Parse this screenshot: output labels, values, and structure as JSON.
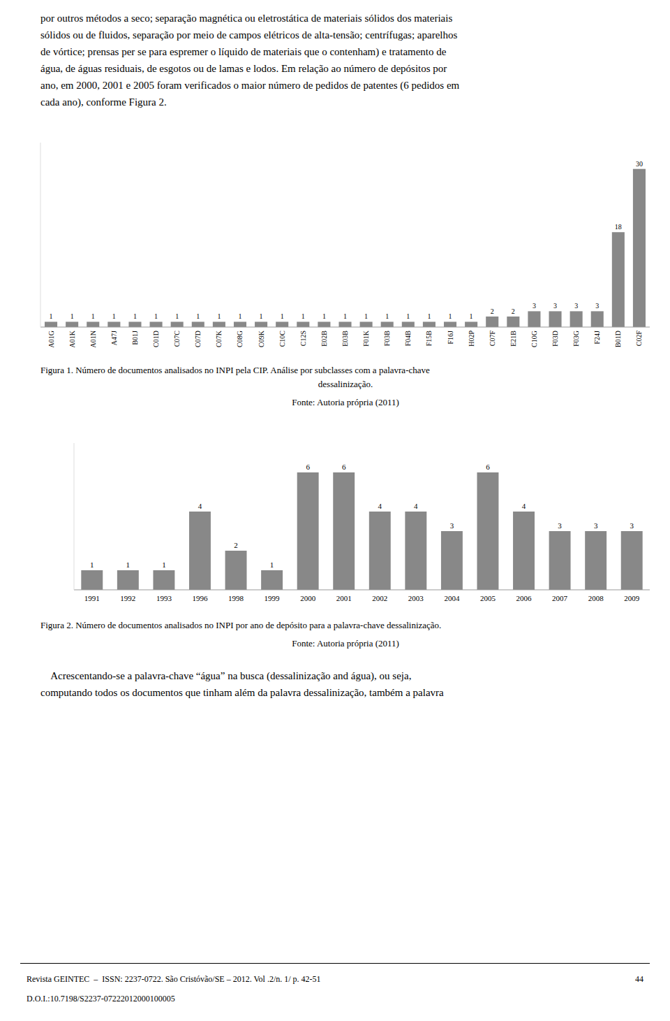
{
  "chart_data": [
    {
      "type": "bar",
      "title": "Figura 1. Número de documentos analisados no INPI pela CIP. Análise por subclasses com a palavra-chave",
      "subtitle": "dessalinização.",
      "annotations": [
        "Fonte: Autoria própria (2011)"
      ],
      "categories": [
        "A01G",
        "A01K",
        "A01N",
        "A47J",
        "B01J",
        "C01D",
        "C07C",
        "C07D",
        "C07K",
        "C08G",
        "C09K",
        "C10C",
        "C12S",
        "E02B",
        "E03B",
        "F01K",
        "F03B",
        "F04B",
        "F15B",
        "F16J",
        "H02P",
        "C07F",
        "E21B",
        "C10G",
        "F03D",
        "F03G",
        "F24J",
        "B01D",
        "C02F"
      ],
      "values": [
        1,
        1,
        1,
        1,
        1,
        1,
        1,
        1,
        1,
        1,
        1,
        1,
        1,
        1,
        1,
        1,
        1,
        1,
        1,
        1,
        1,
        2,
        2,
        3,
        3,
        3,
        3,
        18,
        30
      ],
      "color": "#888888",
      "ylim": [
        0,
        35
      ],
      "grid": false,
      "data_labels": true,
      "tick_labels": "x"
    },
    {
      "type": "bar",
      "title": "Figura 2. Número de documentos analisados no INPI por ano de depósito para a palavra-chave dessalinização.",
      "annotations": [
        "Fonte: Autoria própria (2011)"
      ],
      "categories": [
        "1991",
        "1992",
        "1993",
        "1996",
        "1998",
        "1999",
        "2000",
        "2001",
        "2002",
        "2003",
        "2004",
        "2005",
        "2006",
        "2007",
        "2008",
        "2009"
      ],
      "values": [
        1,
        1,
        1,
        4,
        2,
        1,
        6,
        6,
        4,
        4,
        3,
        6,
        4,
        3,
        3,
        3
      ],
      "color": "#888888",
      "ylim": [
        0,
        7.5
      ],
      "grid": false,
      "data_labels": true,
      "tick_labels": "x"
    }
  ],
  "page": {
    "body_text": [
      "por outros métodos a seco; separação magnética ou eletrostática de materiais sólidos dos materiais",
      "sólidos ou de fluidos, separação por meio de campos elétricos de alta-tensão; centrífugas; aparelhos",
      "de vórtice; prensas per se para espremer o líquido de materiais que o contenham) e tratamento de",
      "água, de águas residuais, de esgotos ou de lamas e lodos. Em relação ao número de depósitos por",
      "ano, em 2000, 2001 e 2005 foram verificados o maior número de pedidos de patentes (6 pedidos em",
      "cada ano), conforme Figura 2."
    ],
    "bottom_text": [
      "    Acrescentando-se a palavra-chave “água” na busca (dessalinização and água), ou seja,",
      "computando todos os documentos que tinham além da palavra dessalinização, também a palavra"
    ],
    "footer": {
      "left": "Revista GEINTEC  –  ISSN: 2237-0722. São Cristóvão/SE – 2012. Vol .2/n. 1/ p. 42-51",
      "right": "44",
      "doi": "D.O.I.:10.7198/S2237-07222012000100005"
    }
  }
}
